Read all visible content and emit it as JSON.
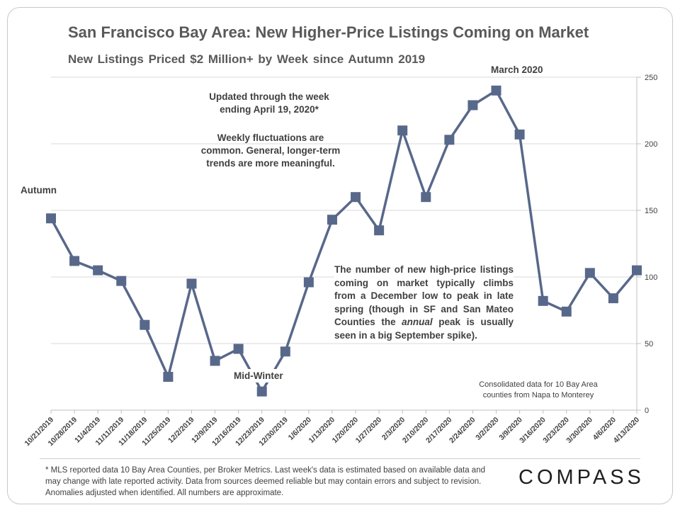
{
  "title": "San Francisco Bay Area: New Higher-Price Listings Coming on Market",
  "subtitle": "New Listings Priced $2 Million+ by Week since Autumn 2019",
  "annotations": {
    "updated": [
      "Updated through the week",
      "ending April 19, 2020*"
    ],
    "fluctuations": [
      "Weekly fluctuations are",
      "common. General, longer-term",
      "trends are more meaningful."
    ],
    "autumn": "Autumn",
    "mid_winter": "Mid-Winter",
    "march": "March 2020",
    "explainer_pre": "The number of new high-price listings coming on market typically climbs from a December low to peak in late spring (though in SF and San Mateo Counties the ",
    "explainer_em": "annual",
    "explainer_post": " peak is usually seen in a big September spike).",
    "consolidated": [
      "Consolidated data for 10 Bay Area",
      "counties from Napa to Monterey"
    ]
  },
  "footer": "* MLS reported data 10 Bay Area Counties, per Broker Metrics. Last week's data is estimated based on available data and may change with late reported activity. Data from sources deemed reliable but may contain errors and subject to revision. Anomalies adjusted when identified. All numbers are approximate.",
  "logo": "COMPASS",
  "colors": {
    "series": "#58688a",
    "grid": "#d9d9d9",
    "axis_text": "#404040"
  },
  "chart_data": {
    "type": "line",
    "x": [
      "10/21/2019",
      "10/28/2019",
      "11/4/2019",
      "11/11/2019",
      "11/18/2019",
      "11/25/2019",
      "12/2/2019",
      "12/9/2019",
      "12/16/2019",
      "12/23/2019",
      "12/30/2019",
      "1/6/2020",
      "1/13/2020",
      "1/20/2020",
      "1/27/2020",
      "2/3/2020",
      "2/10/2020",
      "2/17/2020",
      "2/24/2020",
      "3/2/2020",
      "3/9/2020",
      "3/16/2020",
      "3/23/2020",
      "3/30/2020",
      "4/6/2020",
      "4/13/2020"
    ],
    "series": [
      {
        "values": [
          144,
          112,
          105,
          97,
          64,
          25,
          95,
          37,
          46,
          14,
          44,
          96,
          143,
          160,
          135,
          210,
          160,
          203,
          229,
          240,
          207,
          82,
          74,
          103,
          84,
          105
        ]
      }
    ],
    "ylim": [
      0,
      250
    ],
    "yticks": [
      0,
      50,
      100,
      150,
      200,
      250
    ],
    "y_axis_position": "right",
    "grid": true,
    "marker": "square"
  }
}
